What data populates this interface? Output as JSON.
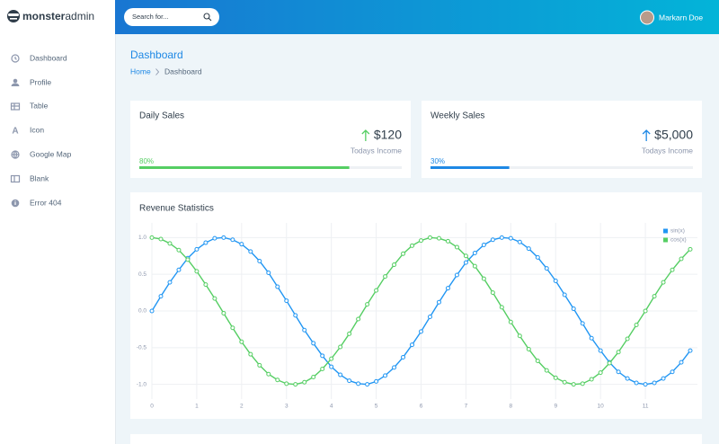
{
  "brand": {
    "bold": "monster",
    "light": "admin"
  },
  "search_placeholder": "Search for...",
  "user": "Markarn Doe",
  "sidebar": [
    "Dashboard",
    "Profile",
    "Table",
    "Icon",
    "Google Map",
    "Blank",
    "Error 404"
  ],
  "page_title": "Dashboard",
  "breadcrumb": [
    "Home",
    "Dashboard"
  ],
  "stats": [
    {
      "title": "Daily Sales",
      "amount": "$120",
      "caption": "Todays Income",
      "progress": {
        "value": 80,
        "label": "80%"
      },
      "color": "#55ce63"
    },
    {
      "title": "Weekly Sales",
      "amount": "$5,000",
      "caption": "Todays Income",
      "progress": {
        "value": 30,
        "label": "30%"
      },
      "color": "#1e88e5"
    }
  ],
  "chart_data": {
    "type": "line",
    "title": "Revenue Statistics",
    "x": [
      0,
      0.2,
      0.4,
      0.6,
      0.8,
      1,
      1.2,
      1.4,
      1.6,
      1.8,
      2,
      2.2,
      2.4,
      2.6,
      2.8,
      3,
      3.2,
      3.4,
      3.6,
      3.8,
      4,
      4.2,
      4.4,
      4.6,
      4.8,
      5,
      5.2,
      5.4,
      5.6,
      5.8,
      6,
      6.2,
      6.4,
      6.6,
      6.8,
      7,
      7.2,
      7.4,
      7.6,
      7.8,
      8,
      8.2,
      8.4,
      8.6,
      8.8,
      9,
      9.2,
      9.4,
      9.6,
      9.8,
      10,
      10.2,
      10.4,
      10.6,
      10.8,
      11,
      11.2,
      11.4,
      11.6,
      11.8,
      12
    ],
    "series": [
      {
        "name": "sin(x)",
        "color": "#2196f3",
        "values": [
          0,
          0.2,
          0.39,
          0.56,
          0.72,
          0.84,
          0.93,
          0.99,
          1,
          0.97,
          0.91,
          0.81,
          0.68,
          0.52,
          0.33,
          0.14,
          -0.06,
          -0.26,
          -0.44,
          -0.61,
          -0.76,
          -0.87,
          -0.95,
          -0.99,
          -1,
          -0.96,
          -0.88,
          -0.77,
          -0.63,
          -0.46,
          -0.28,
          -0.08,
          0.12,
          0.31,
          0.49,
          0.66,
          0.79,
          0.9,
          0.97,
          1,
          0.99,
          0.94,
          0.85,
          0.73,
          0.58,
          0.41,
          0.22,
          0.03,
          -0.17,
          -0.37,
          -0.54,
          -0.7,
          -0.83,
          -0.92,
          -0.98,
          -1,
          -0.98,
          -0.92,
          -0.83,
          -0.7,
          -0.54
        ]
      },
      {
        "name": "cos(x)",
        "color": "#55ce63",
        "values": [
          1,
          0.98,
          0.92,
          0.83,
          0.7,
          0.54,
          0.36,
          0.17,
          -0.03,
          -0.23,
          -0.42,
          -0.59,
          -0.74,
          -0.86,
          -0.94,
          -0.99,
          -1,
          -0.97,
          -0.9,
          -0.79,
          -0.65,
          -0.49,
          -0.31,
          -0.11,
          0.09,
          0.28,
          0.47,
          0.63,
          0.78,
          0.89,
          0.96,
          1,
          0.99,
          0.95,
          0.87,
          0.75,
          0.61,
          0.44,
          0.25,
          0.05,
          -0.15,
          -0.34,
          -0.52,
          -0.68,
          -0.81,
          -0.91,
          -0.97,
          -1,
          -0.99,
          -0.93,
          -0.84,
          -0.71,
          -0.56,
          -0.38,
          -0.19,
          0,
          0.2,
          0.39,
          0.56,
          0.71,
          0.84
        ]
      }
    ],
    "xlim": [
      0,
      12
    ],
    "ylim": [
      -1.2,
      1.2
    ],
    "xticks": [
      0,
      1,
      2,
      3,
      4,
      5,
      6,
      7,
      8,
      9,
      10,
      11
    ],
    "yticks": [
      {
        "value": -1,
        "label": "-1.0"
      },
      {
        "value": -0.5,
        "label": "-0.5"
      },
      {
        "value": 0,
        "label": "0.0"
      },
      {
        "value": 0.5,
        "label": "0.5"
      },
      {
        "value": 1,
        "label": "1.0"
      }
    ],
    "grid": true,
    "legend": "top-right"
  }
}
